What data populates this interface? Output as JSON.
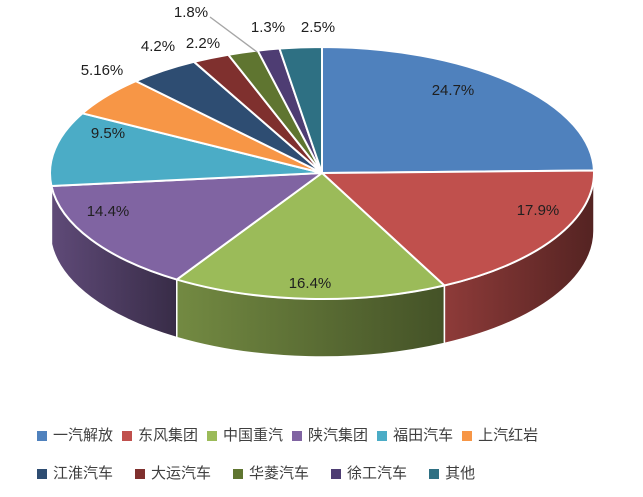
{
  "chart_data": {
    "type": "pie",
    "style": "3d",
    "title": "",
    "legend_position": "bottom",
    "legend_rows": 2,
    "series": [
      {
        "name": "一汽解放",
        "value": 24.7,
        "label": "24.7%",
        "color": "#4F81BD"
      },
      {
        "name": "东风集团",
        "value": 17.9,
        "label": "17.9%",
        "color": "#C0504D"
      },
      {
        "name": "中国重汽",
        "value": 16.4,
        "label": "16.4%",
        "color": "#9BBB59"
      },
      {
        "name": "陕汽集团",
        "value": 14.4,
        "label": "14.4%",
        "color": "#8064A2"
      },
      {
        "name": "福田汽车",
        "value": 9.5,
        "label": "9.5%",
        "color": "#4BACC6"
      },
      {
        "name": "上汽红岩",
        "value": 5.16,
        "label": "5.16%",
        "color": "#F79646"
      },
      {
        "name": "江淮汽车",
        "value": 4.2,
        "label": "4.2%",
        "color": "#2E4D72"
      },
      {
        "name": "大运汽车",
        "value": 2.2,
        "label": "2.2%",
        "color": "#7F302E"
      },
      {
        "name": "华菱汽车",
        "value": 1.8,
        "label": "1.8%",
        "color": "#5F7530"
      },
      {
        "name": "徐工汽车",
        "value": 1.3,
        "label": "1.3%",
        "color": "#4E3D73"
      },
      {
        "name": "其他",
        "value": 2.5,
        "label": "2.5%",
        "color": "#2E7083"
      }
    ]
  },
  "colors": {
    "background": "#FFFFFF",
    "label_text": "#1F1F1F",
    "legend_text": "#3F3F3F",
    "leader_line": "#A6A6A6",
    "slice_border": "#FFFFFF"
  }
}
